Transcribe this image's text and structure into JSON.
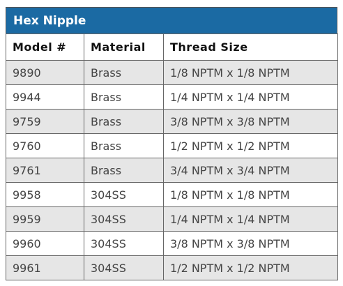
{
  "header": {
    "title": "Hex Nipple"
  },
  "table": {
    "columns": [
      "Model #",
      "Material",
      "Thread Size"
    ],
    "rows": [
      [
        "9890",
        "Brass",
        "1/8 NPTM x 1/8 NPTM"
      ],
      [
        "9944",
        "Brass",
        "1/4 NPTM x 1/4 NPTM"
      ],
      [
        "9759",
        "Brass",
        "3/8 NPTM x 3/8 NPTM"
      ],
      [
        "9760",
        "Brass",
        "1/2 NPTM x 1/2 NPTM"
      ],
      [
        "9761",
        "Brass",
        "3/4 NPTM x 3/4 NPTM"
      ],
      [
        "9958",
        "304SS",
        "1/8 NPTM x 1/8 NPTM"
      ],
      [
        "9959",
        "304SS",
        "1/4 NPTM x 1/4 NPTM"
      ],
      [
        "9960",
        "304SS",
        "3/8 NPTM x 3/8 NPTM"
      ],
      [
        "9961",
        "304SS",
        "1/2 NPTM x 1/2 NPTM"
      ]
    ]
  }
}
